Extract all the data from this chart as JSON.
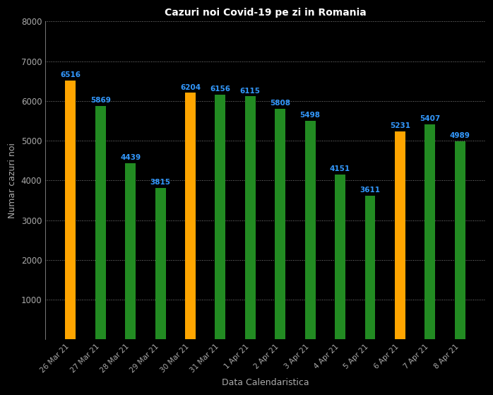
{
  "title": "Cazuri noi Covid-19 pe zi in Romania",
  "xlabel": "Data Calendaristica",
  "ylabel": "Numar cazuri noi",
  "categories": [
    "26 Mar 21",
    "27 Mar 21",
    "28 Mar 21",
    "29 Mar 21",
    "30 Mar 21",
    "31 Mar 21",
    "1 Apr 21",
    "2 Apr 21",
    "3 Apr 21",
    "4 Apr 21",
    "5 Apr 21",
    "6 Apr 21",
    "7 Apr 21",
    "8 Apr 21"
  ],
  "values": [
    6516,
    5869,
    4439,
    3815,
    6204,
    6156,
    6115,
    5808,
    5498,
    4151,
    3611,
    5231,
    5407,
    4989
  ],
  "colors": [
    "#FFA500",
    "#228B22",
    "#228B22",
    "#228B22",
    "#FFA500",
    "#228B22",
    "#228B22",
    "#228B22",
    "#228B22",
    "#228B22",
    "#228B22",
    "#FFA500",
    "#228B22",
    "#228B22"
  ],
  "ylim": [
    0,
    8000
  ],
  "yticks": [
    0,
    1000,
    2000,
    3000,
    4000,
    5000,
    6000,
    7000,
    8000
  ],
  "background_color": "#000000",
  "label_color": "#3399FF",
  "title_color": "#FFFFFF",
  "axis_label_color": "#AAAAAA",
  "tick_color": "#AAAAAA",
  "grid_color": "#FFFFFF",
  "bar_width": 0.35
}
